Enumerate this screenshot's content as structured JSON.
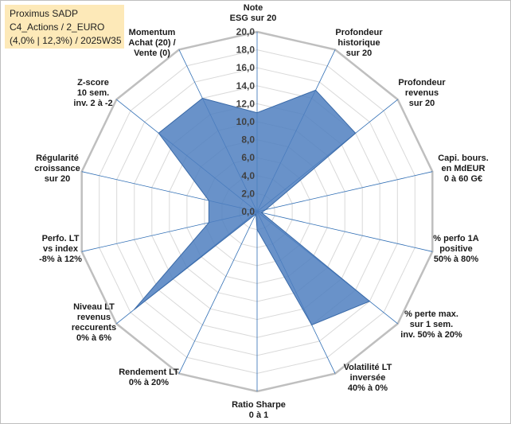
{
  "header": {
    "line1": "Proximus SADP",
    "line2": "C4_Actions / 2_EURO",
    "line3": "(4,0% | 12,3%) / 2025W35"
  },
  "chart_data": {
    "type": "radar",
    "title": "",
    "rlim": [
      0,
      20
    ],
    "ticks": [
      "0,0",
      "2,0",
      "4,0",
      "6,0",
      "8,0",
      "10,0",
      "12,0",
      "14,0",
      "16,0",
      "18,0",
      "20,0"
    ],
    "grid": true,
    "axes": [
      {
        "name": "Note ESG",
        "lines": [
          "Note",
          "ESG sur 20"
        ]
      },
      {
        "name": "Profondeur historique",
        "lines": [
          "Profondeur",
          "historique",
          "sur 20"
        ]
      },
      {
        "name": "Profondeur revenus",
        "lines": [
          "Profondeur",
          "revenus",
          "sur 20"
        ]
      },
      {
        "name": "Capi. bours.",
        "lines": [
          "Capi. bours.",
          "en MdEUR",
          "0 à 60 G€"
        ]
      },
      {
        "name": "% perfo 1A positive",
        "lines": [
          "% perfo 1A",
          "positive",
          "50% à 80%"
        ]
      },
      {
        "name": "% perte max.",
        "lines": [
          "% perte max.",
          "sur 1 sem.",
          "inv. 50% à 20%"
        ]
      },
      {
        "name": "Volatilité LT inversée",
        "lines": [
          "Volatilité LT",
          "inversée",
          "40% à 0%"
        ]
      },
      {
        "name": "Ratio Sharpe",
        "lines": [
          "Ratio Sharpe",
          "0 à 1"
        ]
      },
      {
        "name": "Rendement LT",
        "lines": [
          "Rendement LT",
          "0% à 20%"
        ]
      },
      {
        "name": "Niveau LT revenus reccurents",
        "lines": [
          "Niveau LT",
          "revenus",
          "reccurents",
          "0% à 6%"
        ]
      },
      {
        "name": "Perfo. LT vs index",
        "lines": [
          "Perfo. LT",
          "vs index",
          "-8% à 12%"
        ]
      },
      {
        "name": "Régularité croissance",
        "lines": [
          "Régularité",
          "croissance",
          "sur 20"
        ]
      },
      {
        "name": "Z-score",
        "lines": [
          "Z-score",
          "10 sem.",
          "inv. 2 à -2"
        ]
      },
      {
        "name": "Momentum",
        "lines": [
          "Momentum",
          "Achat (20) /",
          "Vente (0)"
        ]
      }
    ],
    "series": [
      {
        "values": [
          11,
          15,
          14,
          1,
          0.5,
          16,
          14,
          2,
          0.3,
          17.5,
          5.5,
          5.5,
          14,
          14
        ]
      }
    ],
    "colors": {
      "fill": "#4f7fbf",
      "stroke": "#3a6aa8",
      "grid": "#d9d9d9",
      "outer": "#bfbfbf",
      "spoke": "#2e6db4"
    }
  }
}
